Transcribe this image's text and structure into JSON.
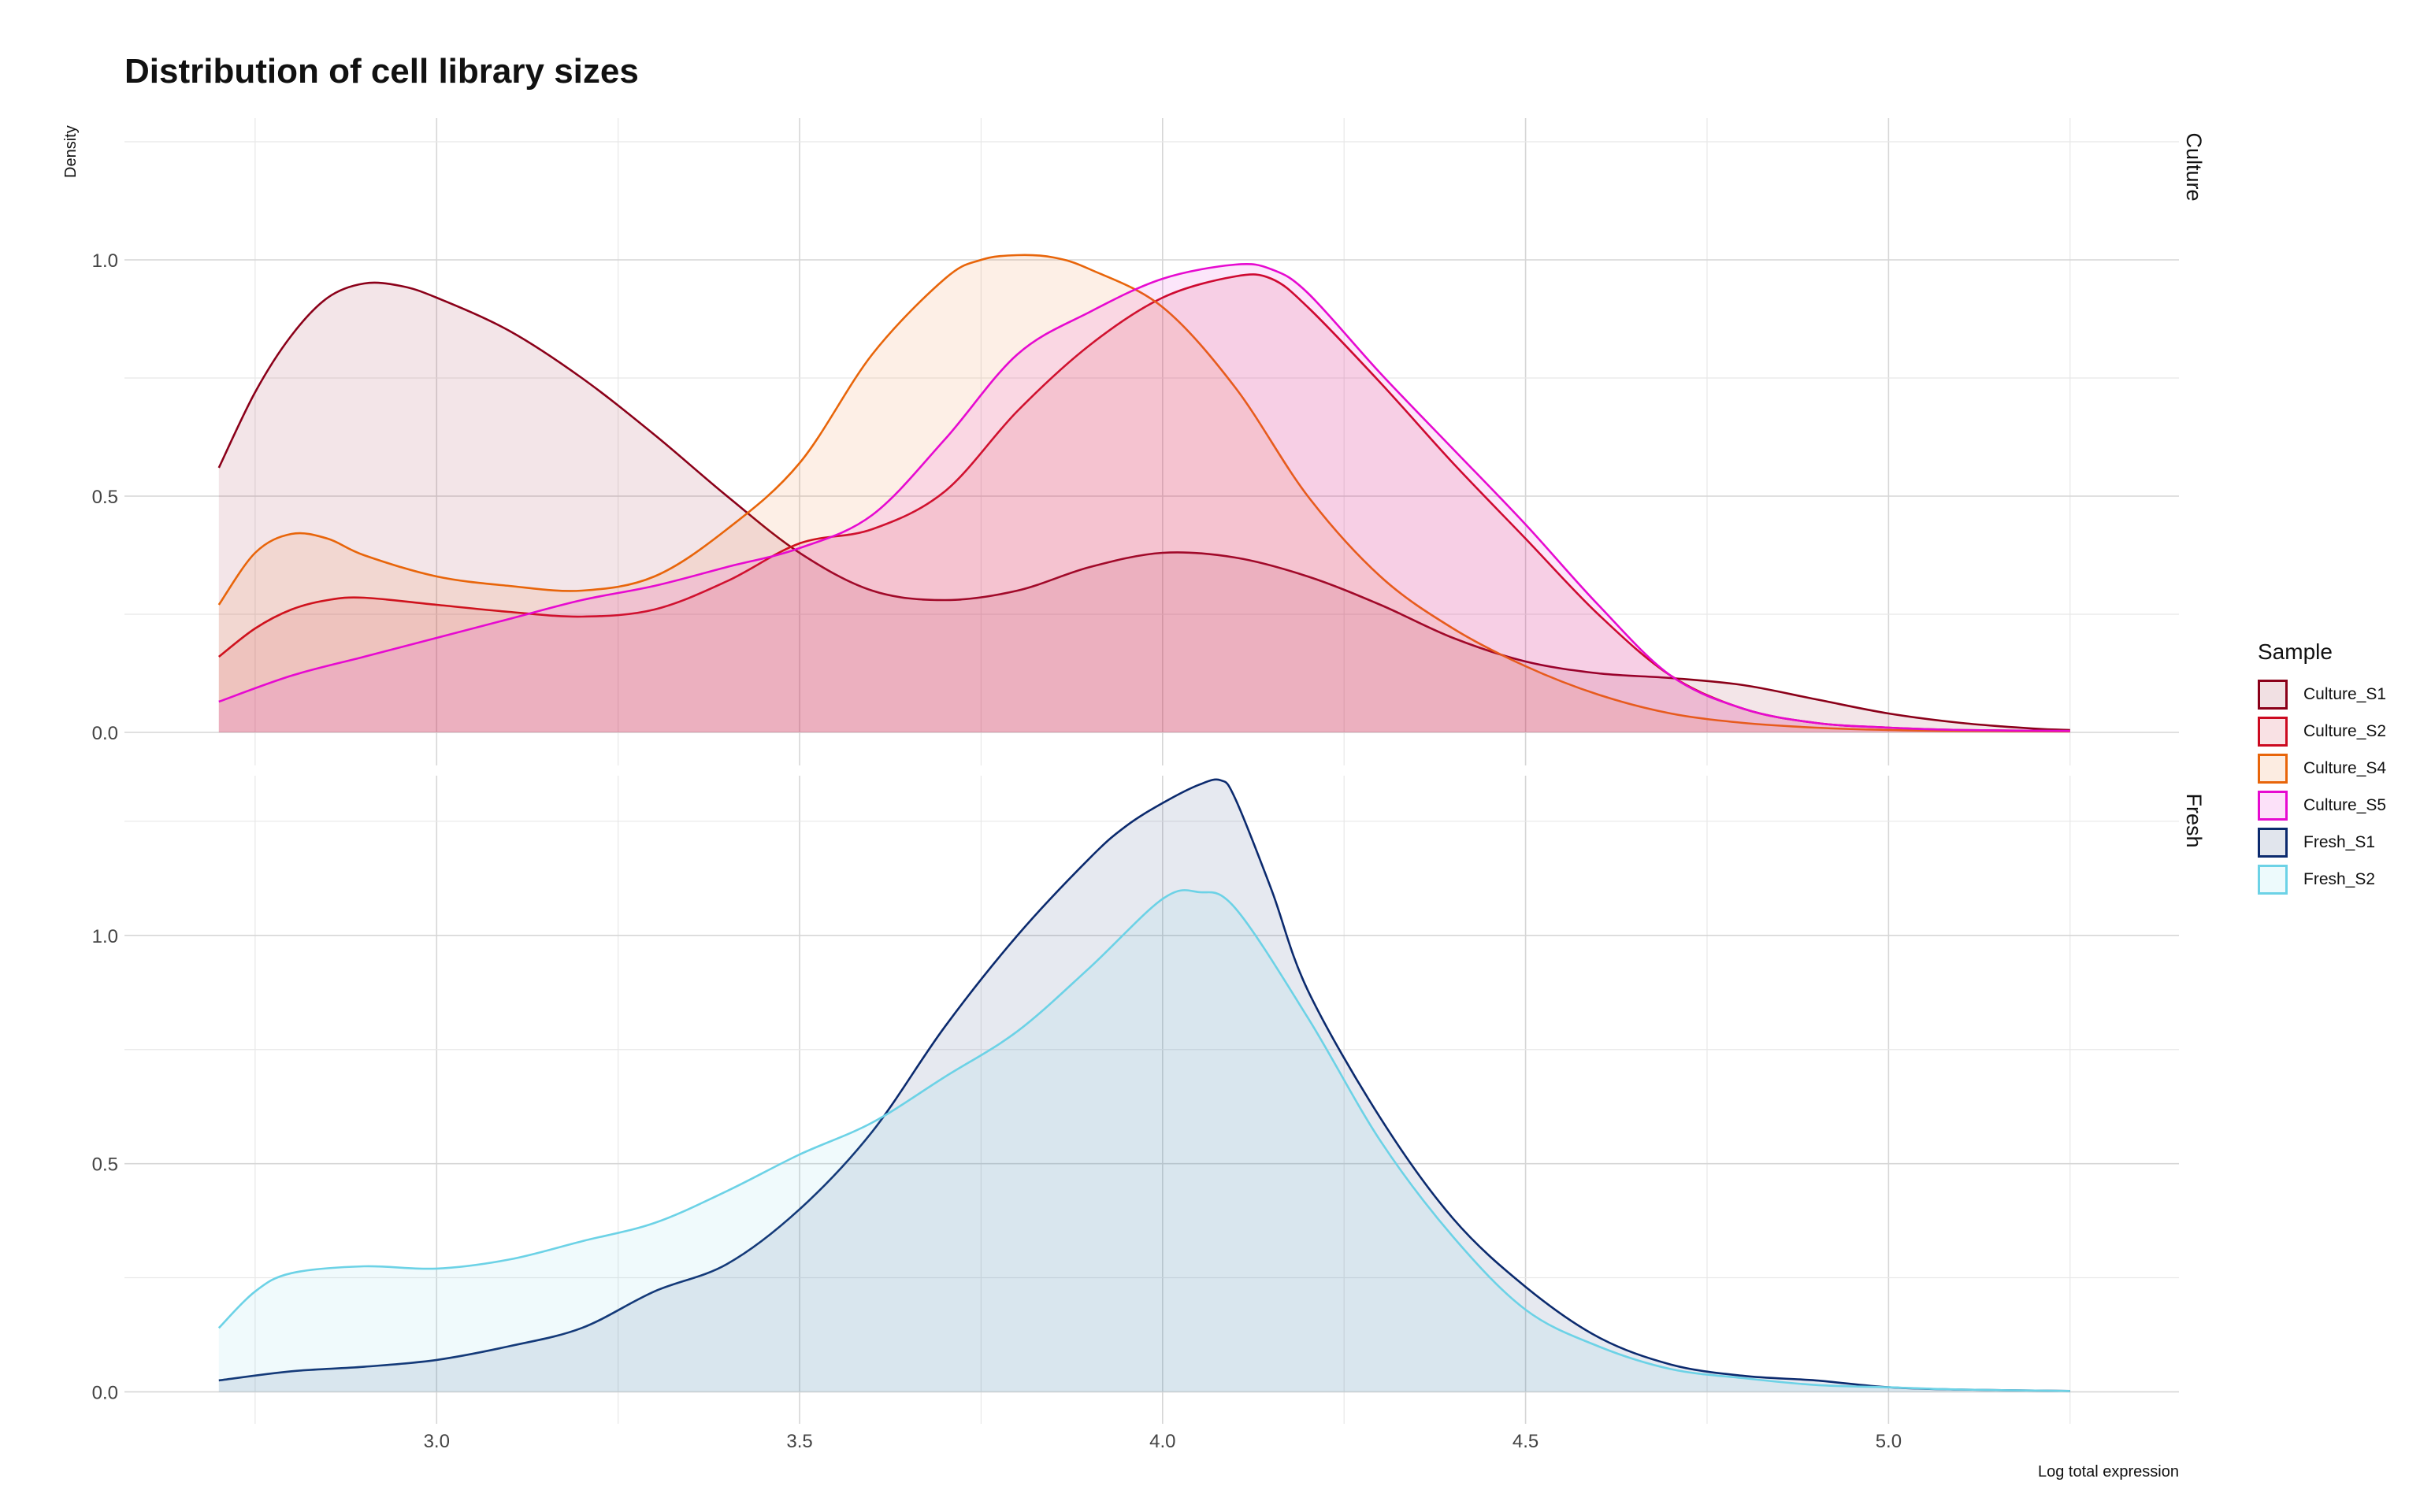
{
  "chart_data": {
    "type": "area",
    "title": "Distribution of cell library sizes",
    "xlabel": "Log total expression",
    "ylabel": "Density",
    "xlim": [
      2.57,
      5.4
    ],
    "x_ticks": [
      "3.0",
      "3.5",
      "4.0",
      "4.5",
      "5.0"
    ],
    "y_ticks": [
      "0.0",
      "0.5",
      "1.0"
    ],
    "grid": true,
    "legend": {
      "title": "Sample",
      "position": "right"
    },
    "facets": [
      {
        "label": "Culture",
        "ylim": [
          -0.07,
          1.3
        ],
        "series": [
          {
            "name": "Culture_S1",
            "color": "#8b0019",
            "x": [
              2.7,
              2.75,
              2.8,
              2.85,
              2.9,
              2.95,
              3.0,
              3.1,
              3.2,
              3.3,
              3.4,
              3.5,
              3.6,
              3.7,
              3.8,
              3.9,
              4.0,
              4.1,
              4.2,
              4.3,
              4.4,
              4.5,
              4.6,
              4.7,
              4.8,
              4.9,
              5.0,
              5.1,
              5.2,
              5.25
            ],
            "y": [
              0.56,
              0.72,
              0.84,
              0.92,
              0.95,
              0.945,
              0.92,
              0.85,
              0.75,
              0.63,
              0.5,
              0.38,
              0.3,
              0.28,
              0.3,
              0.35,
              0.38,
              0.37,
              0.33,
              0.27,
              0.2,
              0.15,
              0.125,
              0.115,
              0.1,
              0.07,
              0.04,
              0.02,
              0.008,
              0.005
            ]
          },
          {
            "name": "Culture_S2",
            "color": "#cc0a20",
            "x": [
              2.7,
              2.75,
              2.8,
              2.85,
              2.9,
              3.0,
              3.1,
              3.2,
              3.3,
              3.4,
              3.5,
              3.6,
              3.7,
              3.8,
              3.9,
              4.0,
              4.1,
              4.15,
              4.2,
              4.3,
              4.4,
              4.5,
              4.6,
              4.7,
              4.8,
              4.9,
              5.0,
              5.1,
              5.25
            ],
            "y": [
              0.16,
              0.22,
              0.26,
              0.28,
              0.285,
              0.27,
              0.255,
              0.245,
              0.26,
              0.32,
              0.4,
              0.43,
              0.51,
              0.68,
              0.82,
              0.92,
              0.965,
              0.96,
              0.9,
              0.74,
              0.57,
              0.41,
              0.25,
              0.12,
              0.05,
              0.02,
              0.01,
              0.005,
              0.003
            ]
          },
          {
            "name": "Culture_S4",
            "color": "#e8650a",
            "x": [
              2.7,
              2.75,
              2.8,
              2.85,
              2.9,
              3.0,
              3.1,
              3.2,
              3.3,
              3.4,
              3.5,
              3.6,
              3.7,
              3.75,
              3.8,
              3.85,
              3.9,
              4.0,
              4.1,
              4.2,
              4.3,
              4.4,
              4.5,
              4.6,
              4.7,
              4.8,
              4.9,
              5.0,
              5.1,
              5.25
            ],
            "y": [
              0.27,
              0.38,
              0.42,
              0.41,
              0.375,
              0.33,
              0.31,
              0.3,
              0.33,
              0.43,
              0.57,
              0.8,
              0.96,
              1.0,
              1.01,
              1.005,
              0.98,
              0.9,
              0.73,
              0.5,
              0.33,
              0.22,
              0.14,
              0.08,
              0.04,
              0.02,
              0.01,
              0.005,
              0.003,
              0.002
            ]
          },
          {
            "name": "Culture_S5",
            "color": "#e60ad0",
            "x": [
              2.7,
              2.8,
              2.9,
              3.0,
              3.1,
              3.2,
              3.3,
              3.4,
              3.5,
              3.6,
              3.7,
              3.8,
              3.9,
              4.0,
              4.1,
              4.15,
              4.2,
              4.3,
              4.4,
              4.5,
              4.6,
              4.7,
              4.8,
              4.9,
              5.0,
              5.1,
              5.25
            ],
            "y": [
              0.065,
              0.12,
              0.16,
              0.2,
              0.24,
              0.28,
              0.31,
              0.35,
              0.39,
              0.46,
              0.62,
              0.8,
              0.89,
              0.96,
              0.99,
              0.98,
              0.93,
              0.76,
              0.6,
              0.44,
              0.27,
              0.12,
              0.05,
              0.02,
              0.01,
              0.005,
              0.003
            ]
          }
        ]
      },
      {
        "label": "Fresh",
        "ylim": [
          -0.07,
          1.35
        ],
        "series": [
          {
            "name": "Fresh_S1",
            "color": "#0b2a6e",
            "x": [
              2.7,
              2.8,
              2.9,
              3.0,
              3.1,
              3.2,
              3.3,
              3.4,
              3.5,
              3.6,
              3.7,
              3.8,
              3.9,
              3.95,
              4.0,
              4.05,
              4.08,
              4.1,
              4.15,
              4.2,
              4.3,
              4.4,
              4.5,
              4.6,
              4.7,
              4.8,
              4.9,
              5.0,
              5.1,
              5.25
            ],
            "y": [
              0.025,
              0.045,
              0.055,
              0.07,
              0.1,
              0.14,
              0.22,
              0.28,
              0.4,
              0.57,
              0.8,
              1.0,
              1.17,
              1.24,
              1.29,
              1.33,
              1.34,
              1.3,
              1.1,
              0.88,
              0.6,
              0.38,
              0.23,
              0.12,
              0.06,
              0.035,
              0.025,
              0.01,
              0.005,
              0.002
            ]
          },
          {
            "name": "Fresh_S2",
            "color": "#6cd2e6",
            "x": [
              2.7,
              2.75,
              2.8,
              2.9,
              3.0,
              3.1,
              3.2,
              3.3,
              3.4,
              3.5,
              3.6,
              3.7,
              3.8,
              3.9,
              4.0,
              4.05,
              4.1,
              4.2,
              4.3,
              4.4,
              4.5,
              4.6,
              4.7,
              4.8,
              4.9,
              5.0,
              5.1,
              5.25
            ],
            "y": [
              0.14,
              0.22,
              0.26,
              0.275,
              0.27,
              0.29,
              0.33,
              0.37,
              0.44,
              0.52,
              0.59,
              0.69,
              0.79,
              0.93,
              1.08,
              1.095,
              1.06,
              0.82,
              0.55,
              0.34,
              0.18,
              0.1,
              0.05,
              0.03,
              0.015,
              0.01,
              0.005,
              0.002
            ]
          }
        ]
      }
    ]
  }
}
